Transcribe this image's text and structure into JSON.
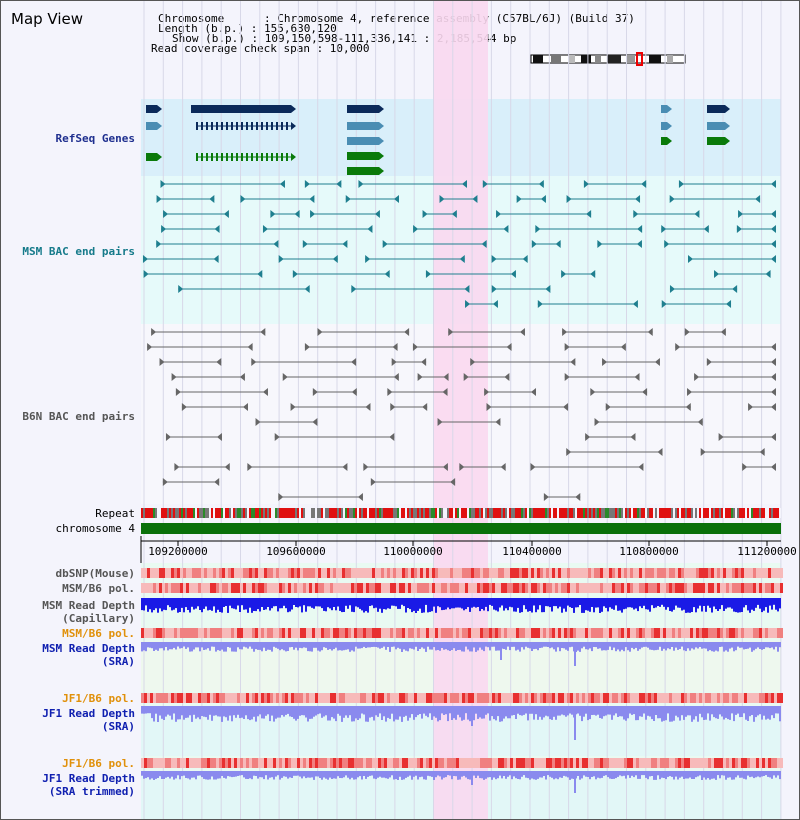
{
  "header": {
    "title": "Map View",
    "info_lines": [
      "Chromosome      : Chromosome 4, reference assembly (C57BL/6J) (Build 37)",
      "Length (b.p.) : 155,630,120",
      "Show (b.p.) : 109,150,598-111,336,141 : 2,185,544 bp",
      "Read coverage check span : 10,000"
    ]
  },
  "tracks": {
    "refseq": "RefSeq Genes",
    "msm_bac": "MSM BAC end pairs",
    "b6n_bac": "B6N BAC end pairs",
    "repeat": "Repeat",
    "chromosome": "chromosome 4",
    "dbsnp": "dbSNP(Mouse)",
    "msm_b6_pol_1": "MSM/B6 pol.",
    "msm_depth_cap_1": "MSM Read Depth",
    "msm_depth_cap_2": "(Capillary)",
    "msm_b6_pol_2": "MSM/B6 pol.",
    "msm_depth_sra_1": "MSM Read Depth",
    "msm_depth_sra_2": "(SRA)",
    "jf1_b6_pol_1": "JF1/B6 pol.",
    "jf1_depth_sra_1": "JF1 Read Depth",
    "jf1_depth_sra_2": "(SRA)",
    "jf1_b6_pol_2": "JF1/B6 pol.",
    "jf1_depth_trim_1": "JF1 Read Depth",
    "jf1_depth_trim_2": "(SRA trimmed)"
  },
  "axis": {
    "ticks": [
      "109200000",
      "109600000",
      "110000000",
      "110400000",
      "110800000",
      "111200000"
    ]
  },
  "colors": {
    "refseq_bg": "#d9effa",
    "teal_bg": "#e6fafa",
    "highlight": "#f9d8ef",
    "gene_navy": "#0b2a5a",
    "gene_steel": "#4a8db3",
    "gene_green": "#0a7a0a",
    "bac_teal": "#1f7f8f",
    "bac_gray": "#666666",
    "chrom_green": "#0a700a",
    "depth_blue": "#1a1ae6",
    "depth_lavender": "#8a8aee",
    "label_navy": "#1f2f8f",
    "label_teal": "#157a8a",
    "label_orange": "#e0900a",
    "label_blue": "#1020b0"
  }
}
